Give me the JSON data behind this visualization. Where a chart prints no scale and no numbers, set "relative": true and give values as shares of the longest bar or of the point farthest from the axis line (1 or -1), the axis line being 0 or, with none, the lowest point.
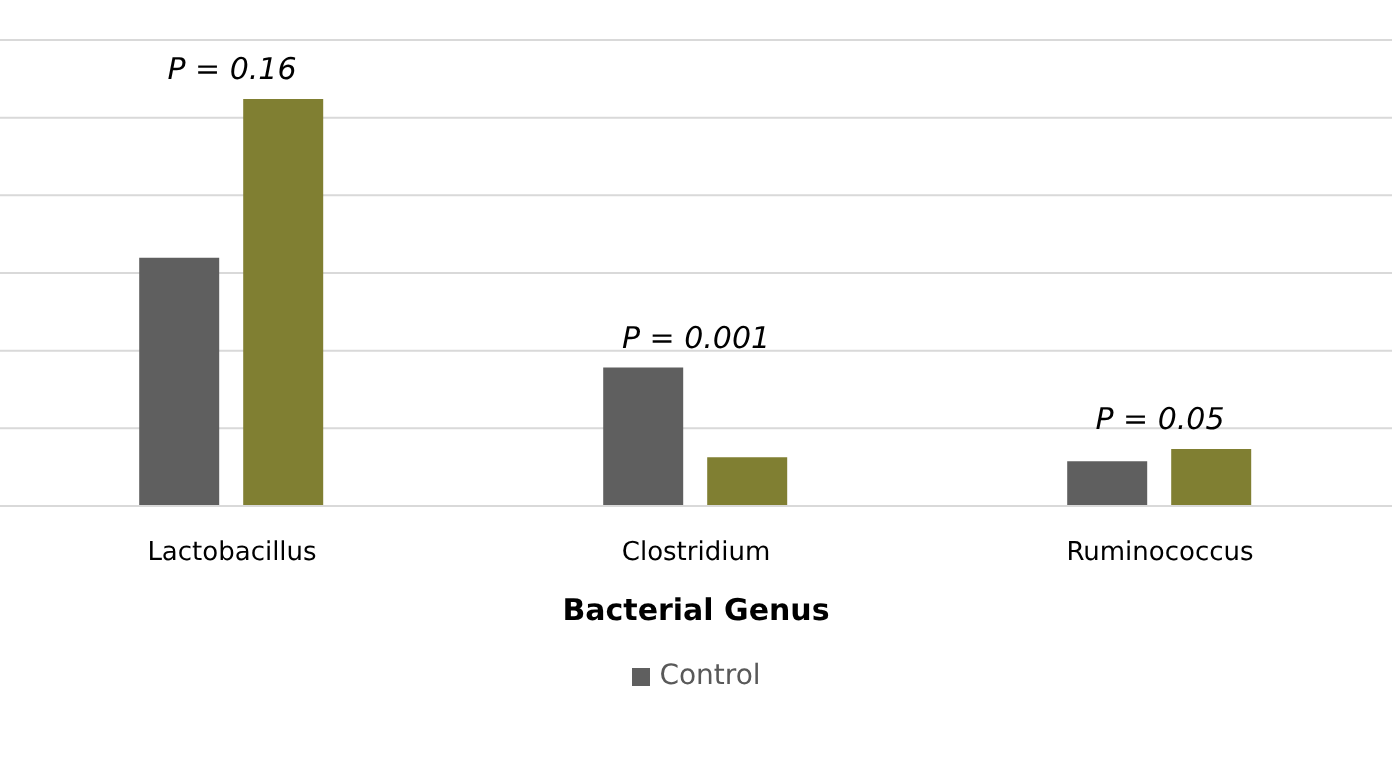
{
  "chart_data": {
    "type": "bar",
    "relative": true,
    "xlabel": "Bacterial Genus",
    "categories": [
      "Lactobacillus",
      "Clostridium",
      "Ruminococcus"
    ],
    "series": [
      {
        "name": "Control",
        "color": "#5f5f5f",
        "values": [
          0.61,
          0.34,
          0.11
        ]
      },
      {
        "color": "#807f32",
        "values": [
          1,
          0.12,
          0.14
        ]
      }
    ],
    "annotations": [
      "P = 0.16",
      "P = 0.001",
      "P = 0.05"
    ],
    "grid": "y",
    "legend": "bottom"
  }
}
